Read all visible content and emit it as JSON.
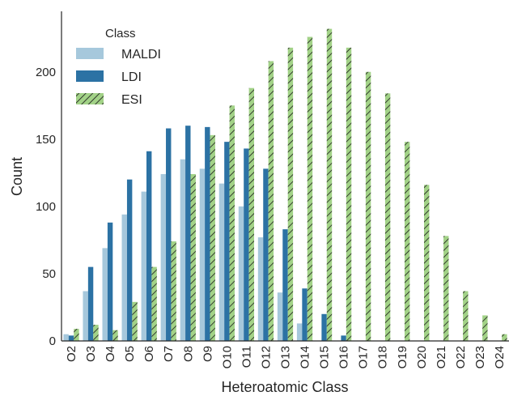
{
  "chart_data": {
    "type": "bar",
    "xlabel": "Heteroatomic Class",
    "ylabel": "Count",
    "ylim": [
      0,
      245
    ],
    "yticks": [
      0,
      50,
      100,
      150,
      200
    ],
    "grid": false,
    "legend": {
      "title": "Class",
      "placement": "top-left"
    },
    "categories": [
      "O2",
      "O3",
      "O4",
      "O5",
      "O6",
      "O7",
      "O8",
      "O9",
      "O10",
      "O11",
      "O12",
      "O13",
      "O14",
      "O15",
      "O16",
      "O17",
      "O18",
      "O19",
      "O20",
      "O21",
      "O22",
      "O23",
      "O24"
    ],
    "series": [
      {
        "name": "MALDI",
        "color": "#a6c8dc",
        "pattern": "solid",
        "values": [
          5,
          37,
          69,
          94,
          111,
          124,
          135,
          128,
          117,
          100,
          77,
          36,
          13,
          0,
          0,
          0,
          0,
          0,
          0,
          0,
          0,
          0,
          0
        ]
      },
      {
        "name": "LDI",
        "color": "#2c72a4",
        "pattern": "solid",
        "values": [
          4,
          55,
          88,
          120,
          141,
          158,
          160,
          159,
          148,
          143,
          128,
          83,
          39,
          20,
          4,
          0,
          0,
          0,
          0,
          0,
          0,
          0,
          0
        ]
      },
      {
        "name": "ESI",
        "color": "#a2d287",
        "pattern": "hatch",
        "values": [
          9,
          12,
          8,
          29,
          55,
          74,
          124,
          153,
          175,
          188,
          208,
          218,
          226,
          232,
          218,
          200,
          184,
          148,
          116,
          78,
          37,
          19,
          5
        ]
      }
    ]
  }
}
